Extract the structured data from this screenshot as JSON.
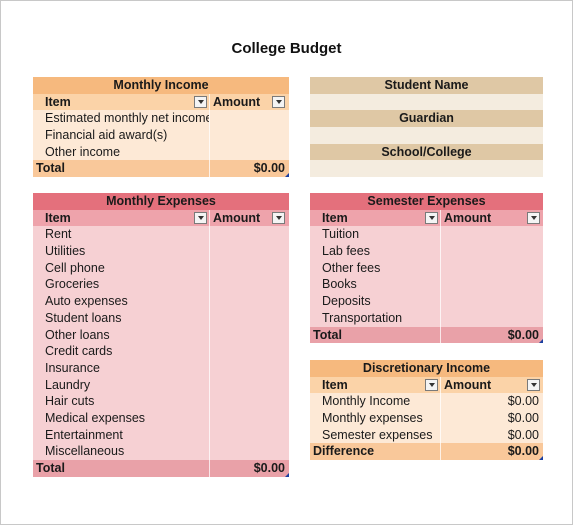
{
  "page": {
    "title": "College Budget"
  },
  "monthly_income": {
    "title": "Monthly Income",
    "col_item": "Item",
    "col_amount": "Amount",
    "rows": [
      {
        "item": "Estimated monthly net income",
        "amount": ""
      },
      {
        "item": "Financial aid award(s)",
        "amount": ""
      },
      {
        "item": "Other income",
        "amount": ""
      }
    ],
    "total_label": "Total",
    "total_value": "$0.00"
  },
  "student_info": {
    "student_name_label": "Student Name",
    "guardian_label": "Guardian",
    "school_label": "School/College"
  },
  "monthly_expenses": {
    "title": "Monthly Expenses",
    "col_item": "Item",
    "col_amount": "Amount",
    "rows": [
      {
        "item": "Rent",
        "amount": ""
      },
      {
        "item": "Utilities",
        "amount": ""
      },
      {
        "item": "Cell phone",
        "amount": ""
      },
      {
        "item": "Groceries",
        "amount": ""
      },
      {
        "item": "Auto expenses",
        "amount": ""
      },
      {
        "item": "Student loans",
        "amount": ""
      },
      {
        "item": "Other loans",
        "amount": ""
      },
      {
        "item": "Credit cards",
        "amount": ""
      },
      {
        "item": "Insurance",
        "amount": ""
      },
      {
        "item": "Laundry",
        "amount": ""
      },
      {
        "item": "Hair cuts",
        "amount": ""
      },
      {
        "item": "Medical expenses",
        "amount": ""
      },
      {
        "item": "Entertainment",
        "amount": ""
      },
      {
        "item": "Miscellaneous",
        "amount": ""
      }
    ],
    "total_label": "Total",
    "total_value": "$0.00"
  },
  "semester_expenses": {
    "title": "Semester Expenses",
    "col_item": "Item",
    "col_amount": "Amount",
    "rows": [
      {
        "item": "Tuition",
        "amount": ""
      },
      {
        "item": "Lab fees",
        "amount": ""
      },
      {
        "item": "Other fees",
        "amount": ""
      },
      {
        "item": "Books",
        "amount": ""
      },
      {
        "item": "Deposits",
        "amount": ""
      },
      {
        "item": "Transportation",
        "amount": ""
      }
    ],
    "total_label": "Total",
    "total_value": "$0.00"
  },
  "discretionary_income": {
    "title": "Discretionary Income",
    "col_item": "Item",
    "col_amount": "Amount",
    "rows": [
      {
        "item": "Monthly Income",
        "amount": "$0.00"
      },
      {
        "item": "Monthly expenses",
        "amount": "$0.00"
      },
      {
        "item": "Semester expenses",
        "amount": "$0.00"
      }
    ],
    "total_label": "Difference",
    "total_value": "$0.00"
  },
  "icons": {
    "filter_dropdown": "chevron-down-icon",
    "cell_corner": "corner-marker-icon"
  },
  "colors": {
    "orange_title": "#f6b97e",
    "orange_body": "#fde9d6",
    "pink_title": "#e4707c",
    "pink_body": "#f6d0d3",
    "tan_title": "#dfc8a5",
    "tan_field": "#f4ecdf"
  }
}
